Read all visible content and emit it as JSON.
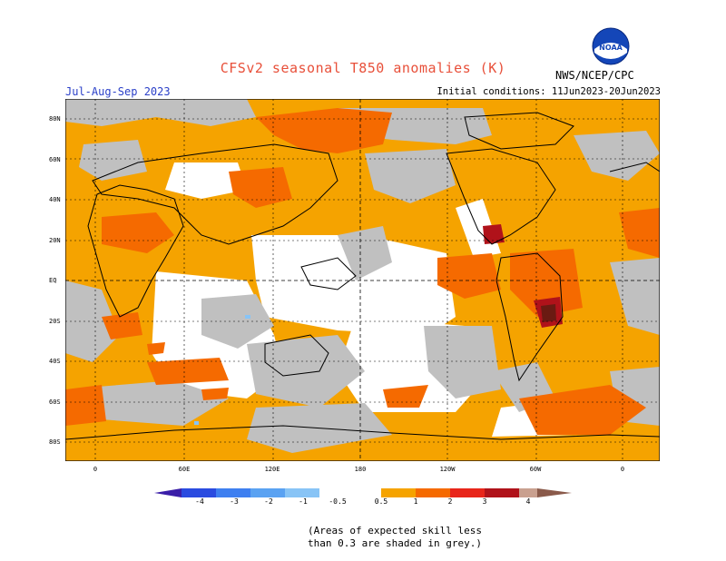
{
  "title": "CFSv2 seasonal T850 anomalies (K)",
  "season": "Jul-Aug-Sep 2023",
  "initial_conditions": "Initial conditions: 11Jun2023-20Jun2023",
  "organization": "NWS/NCEP/CPC",
  "logo_text": "NOAA",
  "lat_labels": [
    "80N",
    "60N",
    "40N",
    "20N",
    "EQ",
    "20S",
    "40S",
    "60S",
    "80S"
  ],
  "lon_labels": [
    "0",
    "60E",
    "120E",
    "180",
    "120W",
    "60W",
    "0"
  ],
  "colorbar_labels": [
    "-4",
    "-3",
    "-2",
    "-1",
    "-0.5",
    "0.5",
    "1",
    "2",
    "3",
    "4"
  ],
  "colorbar_colors": [
    "#3a1ea8",
    "#2a4be0",
    "#3e7ff0",
    "#5aa2f2",
    "#88c4f6",
    "#ffffff",
    "#f5a300",
    "#f56a00",
    "#e8251a",
    "#b0121a",
    "#c9a08f",
    "#8a5a4a"
  ],
  "grey_color": "#c0c0c0",
  "note_line1": "(Areas of expected skill less",
  "note_line2": "than 0.3 are shaded in grey.)"
}
